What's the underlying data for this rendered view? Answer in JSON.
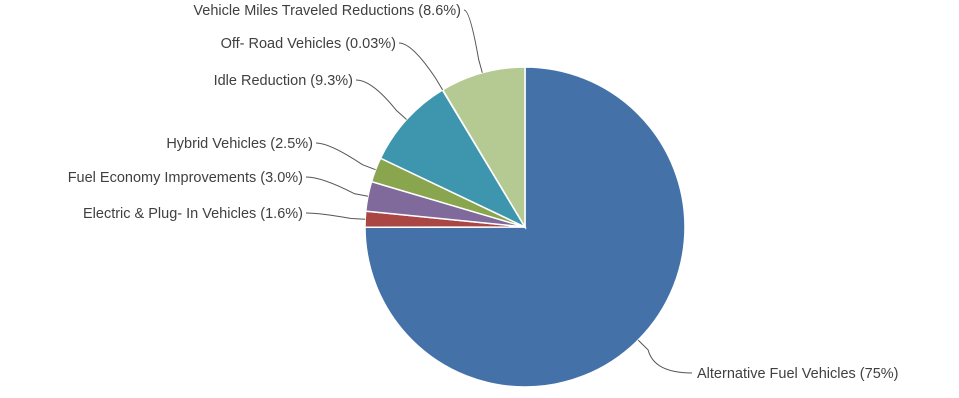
{
  "chart_data": {
    "type": "pie",
    "title": "",
    "slices": [
      {
        "label": "Alternative Fuel Vehicles (75%)",
        "value": 75.0,
        "color": "#4472A8"
      },
      {
        "label": "Electric & Plug- In Vehicles (1.6%)",
        "value": 1.6,
        "color": "#AA4643"
      },
      {
        "label": "Fuel Economy Improvements (3.0%)",
        "value": 3.0,
        "color": "#80699B"
      },
      {
        "label": "Hybrid Vehicles (2.5%)",
        "value": 2.5,
        "color": "#89A54E"
      },
      {
        "label": "Idle Reduction (9.3%)",
        "value": 9.3,
        "color": "#3D96AE"
      },
      {
        "label": "Off- Road Vehicles (0.03%)",
        "value": 0.03,
        "color": "#DB843D"
      },
      {
        "label": "Vehicle Miles Traveled Reductions (8.6%)",
        "value": 8.6,
        "color": "#B5CA92"
      }
    ],
    "start_angle": "12 o'clock",
    "direction": "clockwise",
    "label_placement": "outside with leader lines"
  }
}
